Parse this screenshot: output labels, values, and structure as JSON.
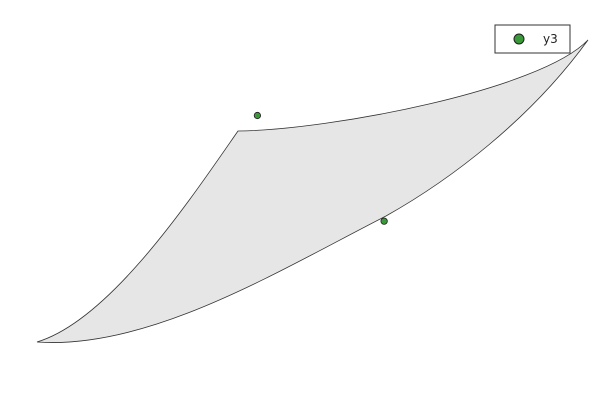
{
  "chart_data": {
    "type": "scatter",
    "title": "",
    "xlabel": "",
    "ylabel": "",
    "axes_visible": false,
    "grid": false,
    "legend_position": "top-right",
    "series": [
      {
        "name": "y3",
        "x": [
          0.4,
          0.63
        ],
        "y": [
          0.75,
          0.4
        ],
        "color": "#3a9a3a"
      }
    ],
    "shape": {
      "fill_color": "#e6e6e6",
      "outline_color": "#333333"
    }
  }
}
